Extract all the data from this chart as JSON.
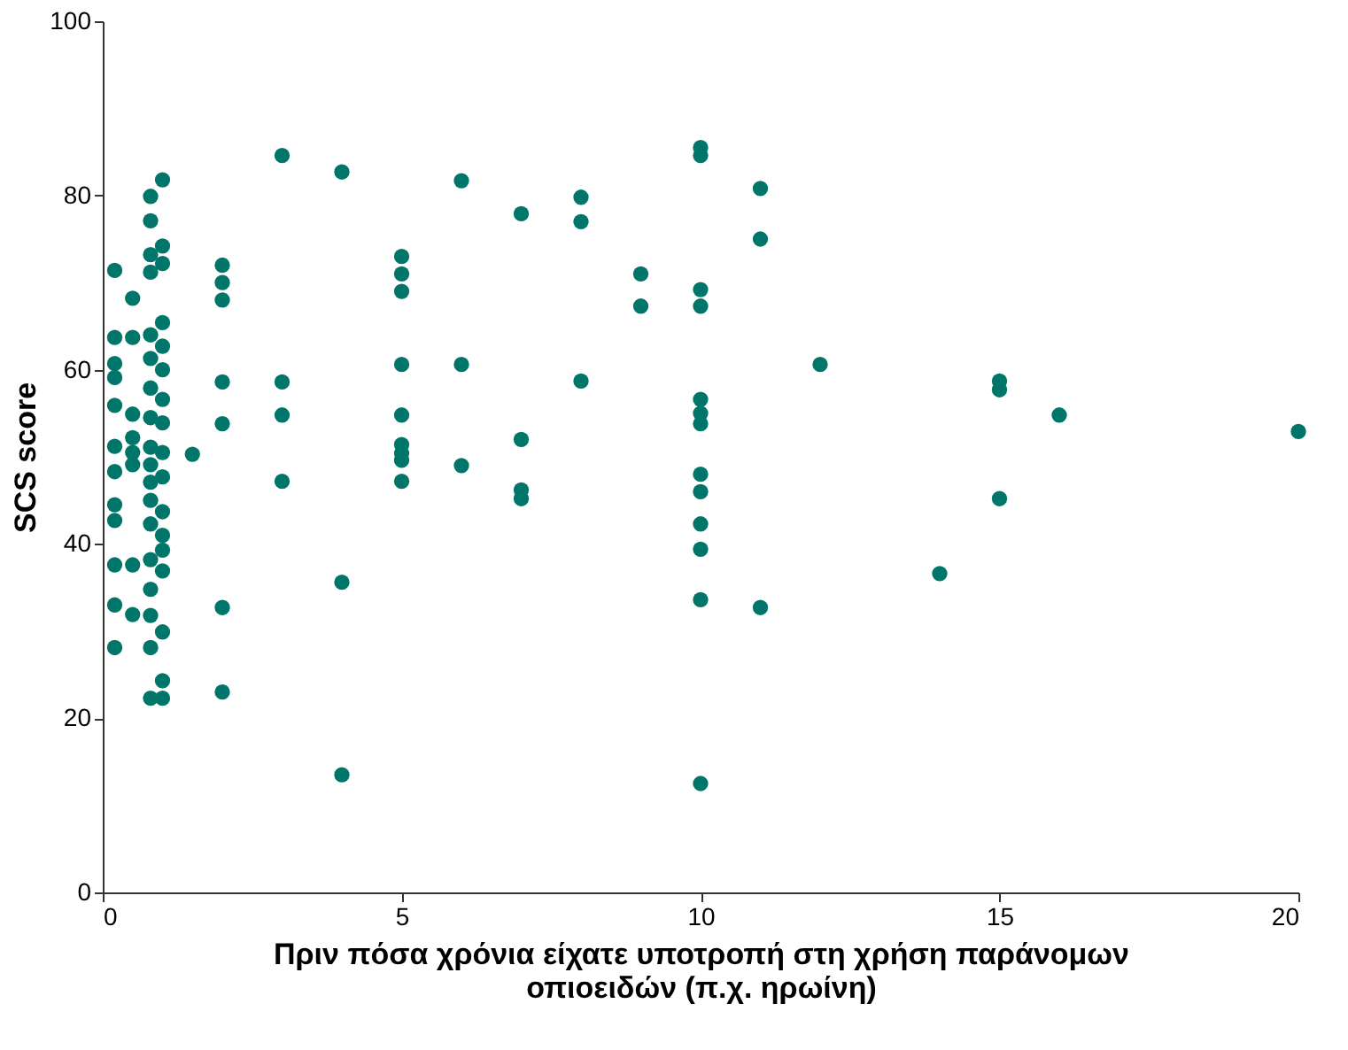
{
  "chart_data": {
    "type": "scatter",
    "xlabel": "Πριν πόσα χρόνια είχατε υποτροπή στη χρήση παράνομων\nοπιοειδών (π.χ. ηρωίνη)",
    "ylabel": "SCS score",
    "series": [
      {
        "color": "#00766a",
        "x": [
          0.2,
          0.2,
          0.2,
          0.2,
          0.2,
          0.2,
          0.2,
          0.2,
          0.2,
          0.2,
          0.2,
          0.2,
          0.5,
          0.5,
          0.5,
          0.5,
          0.5,
          0.5,
          0.5,
          0.5,
          1,
          0.8,
          0.8,
          1,
          0.8,
          1,
          0.8,
          1,
          0.8,
          1,
          0.8,
          1,
          0.8,
          1,
          0.8,
          1,
          0.8,
          1,
          0.8,
          1,
          0.8,
          0.8,
          1,
          0.8,
          1,
          1,
          0.8,
          1,
          0.8,
          0.8,
          1,
          0.8,
          1,
          0.8,
          1,
          1.5,
          2,
          2,
          2,
          2,
          2,
          2,
          2,
          3,
          3,
          3,
          3,
          4,
          4,
          4,
          5,
          5,
          5,
          5,
          5,
          5,
          5,
          5,
          5,
          6,
          6,
          6,
          7,
          7,
          7,
          7,
          8,
          8,
          8,
          9,
          9,
          10,
          10,
          10,
          10,
          10,
          10,
          10,
          10,
          10,
          10,
          10,
          10,
          10,
          11,
          11,
          11,
          12,
          14,
          15,
          15,
          15,
          16,
          20
        ],
        "values": [
          71.4,
          63.7,
          60.7,
          59.1,
          55.9,
          51.2,
          48.3,
          44.5,
          42.7,
          37.6,
          33,
          28.1,
          68.2,
          63.7,
          54.9,
          52.2,
          50.5,
          49.1,
          37.6,
          31.9,
          81.8,
          79.9,
          77.1,
          74.2,
          73.2,
          72.2,
          71.2,
          65.4,
          64,
          62.7,
          61.3,
          60,
          57.9,
          56.6,
          54.5,
          53.9,
          51.1,
          50.5,
          49.1,
          47.7,
          47.1,
          45,
          43.7,
          42.3,
          41,
          39.3,
          38.2,
          36.9,
          34.8,
          31.8,
          29.9,
          28.1,
          24.3,
          22.3,
          22.3,
          50.3,
          72,
          70,
          68,
          58.6,
          53.8,
          32.7,
          23,
          84.6,
          58.6,
          54.8,
          47.2,
          82.7,
          35.6,
          13.5,
          73,
          71,
          69,
          60.6,
          54.8,
          51.4,
          50.4,
          49.6,
          47.2,
          81.7,
          60.6,
          49,
          77.9,
          52,
          46.2,
          45.2,
          79.8,
          77,
          58.7,
          71,
          67.3,
          85.5,
          84.6,
          69.2,
          67.3,
          56.6,
          55,
          53.8,
          48,
          46,
          42.3,
          39.4,
          33.6,
          12.5,
          80.8,
          75,
          32.7,
          60.6,
          36.6,
          58.7,
          57.7,
          45.2,
          54.8,
          52.9
        ]
      }
    ],
    "xlim": [
      0,
      20
    ],
    "xticks": [
      0,
      5,
      10,
      15,
      20
    ],
    "ylim": [
      0,
      100
    ],
    "yticks": [
      0,
      20,
      40,
      60,
      80,
      100
    ],
    "marker": "circle",
    "grid": false,
    "legend": false
  }
}
